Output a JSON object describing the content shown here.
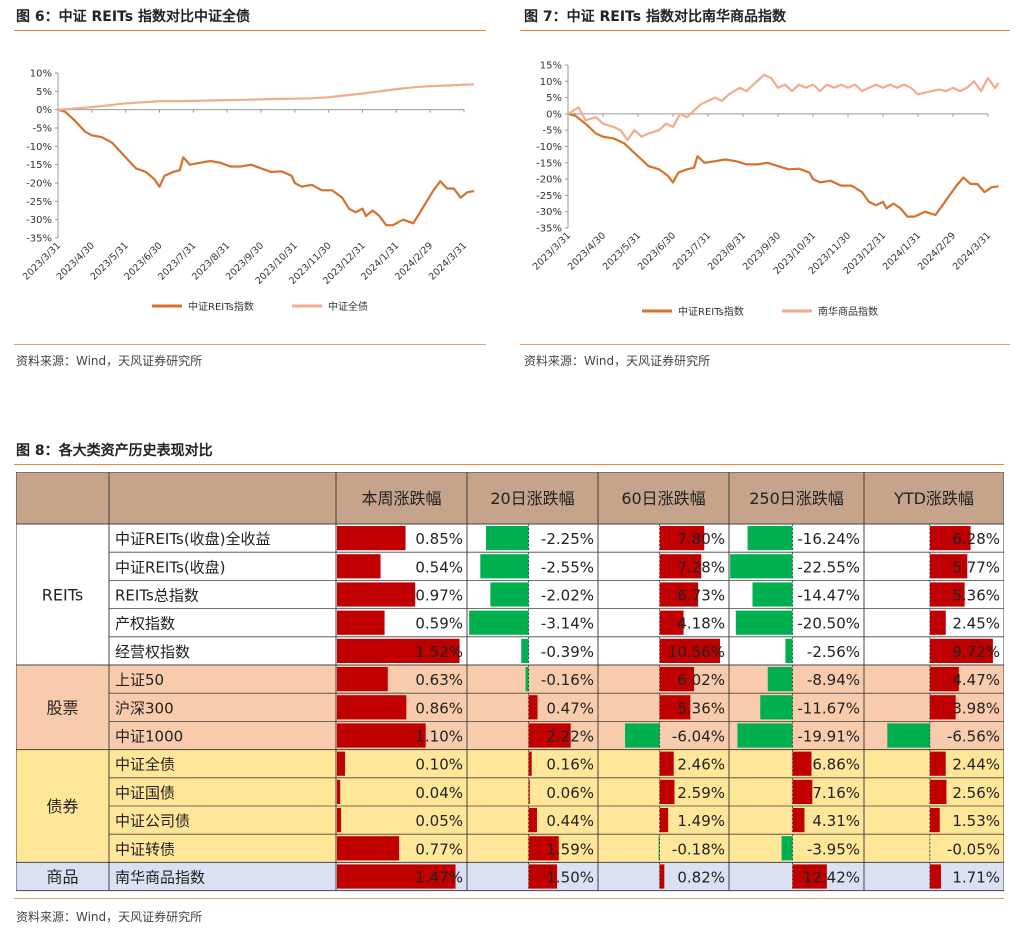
{
  "fig6": {
    "title": "图 6：中证 REITs 指数对比中证全债",
    "source": "资料来源：Wind，天风证券研究所",
    "chart_data": {
      "type": "line",
      "yticks": [
        "10%",
        "5%",
        "0%",
        "-5%",
        "-10%",
        "-15%",
        "-20%",
        "-25%",
        "-30%",
        "-35%"
      ],
      "ylim": [
        -35,
        10
      ],
      "xticks": [
        "2023/3/31",
        "2023/4/30",
        "2023/5/31",
        "2023/6/30",
        "2023/7/31",
        "2023/8/31",
        "2023/9/30",
        "2023/10/31",
        "2023/11/30",
        "2023/12/31",
        "2024/1/31",
        "2024/2/29",
        "2024/3/31"
      ],
      "series": [
        {
          "name": "中证REITs指数",
          "color": "#d4712a",
          "width": 2.2,
          "points": [
            [
              0,
              0
            ],
            [
              0.2,
              -0.5
            ],
            [
              0.5,
              -3
            ],
            [
              0.8,
              -6
            ],
            [
              1,
              -7
            ],
            [
              1.3,
              -7.5
            ],
            [
              1.6,
              -9
            ],
            [
              1.9,
              -12
            ],
            [
              2.1,
              -14
            ],
            [
              2.3,
              -16
            ],
            [
              2.6,
              -17
            ],
            [
              2.85,
              -19
            ],
            [
              3,
              -21
            ],
            [
              3.15,
              -18
            ],
            [
              3.4,
              -17
            ],
            [
              3.6,
              -16.5
            ],
            [
              3.7,
              -13
            ],
            [
              3.9,
              -15
            ],
            [
              4.2,
              -14.5
            ],
            [
              4.5,
              -14
            ],
            [
              4.8,
              -14.5
            ],
            [
              5.1,
              -15.5
            ],
            [
              5.4,
              -15.5
            ],
            [
              5.7,
              -15
            ],
            [
              6,
              -16
            ],
            [
              6.3,
              -17
            ],
            [
              6.6,
              -16.8
            ],
            [
              6.9,
              -18
            ],
            [
              7,
              -20
            ],
            [
              7.2,
              -21
            ],
            [
              7.5,
              -20.5
            ],
            [
              7.8,
              -22
            ],
            [
              8.1,
              -22
            ],
            [
              8.4,
              -24
            ],
            [
              8.6,
              -27
            ],
            [
              8.8,
              -28
            ],
            [
              9,
              -27
            ],
            [
              9.1,
              -29
            ],
            [
              9.3,
              -27.5
            ],
            [
              9.5,
              -29
            ],
            [
              9.7,
              -31.5
            ],
            [
              9.9,
              -31.5
            ],
            [
              10.2,
              -30
            ],
            [
              10.5,
              -31
            ],
            [
              10.7,
              -28
            ],
            [
              10.9,
              -25
            ],
            [
              11.1,
              -22
            ],
            [
              11.3,
              -19.5
            ],
            [
              11.5,
              -21.5
            ],
            [
              11.7,
              -21.5
            ],
            [
              11.9,
              -24
            ],
            [
              12.1,
              -22.5
            ],
            [
              12.3,
              -22.2
            ]
          ]
        },
        {
          "name": "中证全债",
          "color": "#f2ab8d",
          "width": 2.2,
          "points": [
            [
              0,
              0
            ],
            [
              0.5,
              0.3
            ],
            [
              1,
              0.7
            ],
            [
              1.5,
              1.2
            ],
            [
              2,
              1.7
            ],
            [
              2.5,
              2.0
            ],
            [
              3,
              2.3
            ],
            [
              3.5,
              2.3
            ],
            [
              4,
              2.4
            ],
            [
              4.5,
              2.5
            ],
            [
              5,
              2.6
            ],
            [
              5.5,
              2.7
            ],
            [
              6,
              2.8
            ],
            [
              6.5,
              2.9
            ],
            [
              7,
              3.0
            ],
            [
              7.5,
              3.1
            ],
            [
              8,
              3.4
            ],
            [
              8.5,
              3.9
            ],
            [
              9,
              4.4
            ],
            [
              9.5,
              5.0
            ],
            [
              10,
              5.6
            ],
            [
              10.5,
              6.1
            ],
            [
              11,
              6.4
            ],
            [
              11.5,
              6.6
            ],
            [
              12,
              6.8
            ],
            [
              12.3,
              6.9
            ]
          ]
        }
      ]
    }
  },
  "fig7": {
    "title": "图 7：中证 REITs 指数对比南华商品指数",
    "source": "资料来源：Wind，天风证券研究所",
    "chart_data": {
      "type": "line",
      "yticks": [
        "15%",
        "10%",
        "5%",
        "0%",
        "-5%",
        "-10%",
        "-15%",
        "-20%",
        "-25%",
        "-30%",
        "-35%"
      ],
      "ylim": [
        -35,
        15
      ],
      "xticks": [
        "2023/3/31",
        "2023/4/30",
        "2023/5/31",
        "2023/6/30",
        "2023/7/31",
        "2023/8/31",
        "2023/9/30",
        "2023/10/31",
        "2023/11/30",
        "2023/12/31",
        "2024/1/31",
        "2024/2/29",
        "2024/3/31"
      ],
      "series": [
        {
          "name": "中证REITs指数",
          "color": "#d4712a",
          "width": 2.2,
          "points": [
            [
              0,
              0
            ],
            [
              0.2,
              -0.5
            ],
            [
              0.5,
              -3
            ],
            [
              0.8,
              -6
            ],
            [
              1,
              -7
            ],
            [
              1.3,
              -7.5
            ],
            [
              1.6,
              -9
            ],
            [
              1.9,
              -12
            ],
            [
              2.1,
              -14
            ],
            [
              2.3,
              -16
            ],
            [
              2.6,
              -17
            ],
            [
              2.85,
              -19
            ],
            [
              3,
              -21
            ],
            [
              3.15,
              -18
            ],
            [
              3.4,
              -17
            ],
            [
              3.6,
              -16.5
            ],
            [
              3.7,
              -13
            ],
            [
              3.9,
              -15
            ],
            [
              4.2,
              -14.5
            ],
            [
              4.5,
              -14
            ],
            [
              4.8,
              -14.5
            ],
            [
              5.1,
              -15.5
            ],
            [
              5.4,
              -15.5
            ],
            [
              5.7,
              -15
            ],
            [
              6,
              -16
            ],
            [
              6.3,
              -17
            ],
            [
              6.6,
              -16.8
            ],
            [
              6.9,
              -18
            ],
            [
              7,
              -20
            ],
            [
              7.2,
              -21
            ],
            [
              7.5,
              -20.5
            ],
            [
              7.8,
              -22
            ],
            [
              8.1,
              -22
            ],
            [
              8.4,
              -24
            ],
            [
              8.6,
              -27
            ],
            [
              8.8,
              -28
            ],
            [
              9,
              -27
            ],
            [
              9.1,
              -29
            ],
            [
              9.3,
              -27.5
            ],
            [
              9.5,
              -29
            ],
            [
              9.7,
              -31.5
            ],
            [
              9.9,
              -31.5
            ],
            [
              10.2,
              -30
            ],
            [
              10.5,
              -31
            ],
            [
              10.7,
              -28
            ],
            [
              10.9,
              -25
            ],
            [
              11.1,
              -22
            ],
            [
              11.3,
              -19.5
            ],
            [
              11.5,
              -21.5
            ],
            [
              11.7,
              -21.5
            ],
            [
              11.9,
              -24
            ],
            [
              12.1,
              -22.5
            ],
            [
              12.3,
              -22.2
            ]
          ]
        },
        {
          "name": "南华商品指数",
          "color": "#f2ab8d",
          "width": 2.2,
          "points": [
            [
              0,
              0
            ],
            [
              0.3,
              2
            ],
            [
              0.5,
              -2
            ],
            [
              0.8,
              -1
            ],
            [
              1,
              -3
            ],
            [
              1.3,
              -4
            ],
            [
              1.5,
              -5
            ],
            [
              1.7,
              -8
            ],
            [
              1.9,
              -5
            ],
            [
              2.1,
              -7
            ],
            [
              2.3,
              -6
            ],
            [
              2.6,
              -5
            ],
            [
              2.8,
              -3
            ],
            [
              3,
              -4
            ],
            [
              3.2,
              0
            ],
            [
              3.4,
              -1
            ],
            [
              3.6,
              1
            ],
            [
              3.8,
              3
            ],
            [
              4,
              4
            ],
            [
              4.2,
              5
            ],
            [
              4.4,
              4
            ],
            [
              4.6,
              6
            ],
            [
              4.9,
              8
            ],
            [
              5.1,
              7
            ],
            [
              5.4,
              10
            ],
            [
              5.6,
              12
            ],
            [
              5.8,
              11
            ],
            [
              6,
              8
            ],
            [
              6.2,
              9
            ],
            [
              6.4,
              7
            ],
            [
              6.6,
              9
            ],
            [
              6.8,
              8
            ],
            [
              7,
              9
            ],
            [
              7.2,
              7
            ],
            [
              7.4,
              9
            ],
            [
              7.6,
              8
            ],
            [
              7.8,
              9
            ],
            [
              8,
              8
            ],
            [
              8.2,
              9
            ],
            [
              8.4,
              7
            ],
            [
              8.6,
              8
            ],
            [
              8.8,
              9
            ],
            [
              9,
              8
            ],
            [
              9.2,
              9
            ],
            [
              9.4,
              8
            ],
            [
              9.6,
              9
            ],
            [
              9.8,
              8
            ],
            [
              10,
              6
            ],
            [
              10.2,
              6.5
            ],
            [
              10.4,
              7
            ],
            [
              10.6,
              7.5
            ],
            [
              10.8,
              7
            ],
            [
              11,
              8
            ],
            [
              11.2,
              7
            ],
            [
              11.4,
              8
            ],
            [
              11.6,
              10
            ],
            [
              11.8,
              7
            ],
            [
              12,
              11
            ],
            [
              12.2,
              8
            ],
            [
              12.3,
              9.5
            ]
          ]
        }
      ]
    }
  },
  "fig8": {
    "title": "图 8：各大类资产历史表现对比",
    "source": "资料来源：Wind，天风证券研究所",
    "columns": [
      "本周涨跌幅",
      "20日涨跌幅",
      "60日涨跌幅",
      "250日涨跌幅",
      "YTD涨跌幅"
    ],
    "col_max": [
      1.6,
      3.2,
      10.6,
      22.6,
      10.0
    ],
    "colors": {
      "pos": "#c00000",
      "neg": "#00b050",
      "header": "#c5a48b",
      "reits": "#ffffff",
      "equity": "#f8cbad",
      "bond": "#ffe699",
      "commodity": "#d9e1f2",
      "text": "#222222"
    },
    "groups": [
      {
        "name": "REITs",
        "bg": "reits",
        "rows": [
          {
            "label": "中证REITs(收盘)全收益",
            "values": [
              0.85,
              -2.25,
              7.8,
              -16.24,
              6.28
            ],
            "text": [
              "0.85%",
              "-2.25%",
              "7.80%",
              "-16.24%",
              "6.28%"
            ]
          },
          {
            "label": "中证REITs(收盘)",
            "values": [
              0.54,
              -2.55,
              7.28,
              -22.55,
              5.77
            ],
            "text": [
              "0.54%",
              "-2.55%",
              "7.28%",
              "-22.55%",
              "5.77%"
            ]
          },
          {
            "label": "REITs总指数",
            "values": [
              0.97,
              -2.02,
              6.73,
              -14.47,
              5.36
            ],
            "text": [
              "0.97%",
              "-2.02%",
              "6.73%",
              "-14.47%",
              "5.36%"
            ]
          },
          {
            "label": "产权指数",
            "values": [
              0.59,
              -3.14,
              4.18,
              -20.5,
              2.45
            ],
            "text": [
              "0.59%",
              "-3.14%",
              "4.18%",
              "-20.50%",
              "2.45%"
            ]
          },
          {
            "label": "经营权指数",
            "values": [
              1.52,
              -0.39,
              10.56,
              -2.56,
              9.72
            ],
            "text": [
              "1.52%",
              "-0.39%",
              "10.56%",
              "-2.56%",
              "9.72%"
            ]
          }
        ]
      },
      {
        "name": "股票",
        "bg": "equity",
        "rows": [
          {
            "label": "上证50",
            "values": [
              0.63,
              -0.16,
              6.02,
              -8.94,
              4.47
            ],
            "text": [
              "0.63%",
              "-0.16%",
              "6.02%",
              "-8.94%",
              "4.47%"
            ]
          },
          {
            "label": "沪深300",
            "values": [
              0.86,
              0.47,
              5.36,
              -11.67,
              3.98
            ],
            "text": [
              "0.86%",
              "0.47%",
              "5.36%",
              "-11.67%",
              "3.98%"
            ]
          },
          {
            "label": "中证1000",
            "values": [
              1.1,
              2.22,
              -6.04,
              -19.91,
              -6.56
            ],
            "text": [
              "1.10%",
              "2.22%",
              "-6.04%",
              "-19.91%",
              "-6.56%"
            ]
          }
        ]
      },
      {
        "name": "债券",
        "bg": "bond",
        "rows": [
          {
            "label": "中证全债",
            "values": [
              0.1,
              0.16,
              2.46,
              6.86,
              2.44
            ],
            "text": [
              "0.10%",
              "0.16%",
              "2.46%",
              "6.86%",
              "2.44%"
            ]
          },
          {
            "label": "中证国债",
            "values": [
              0.04,
              0.06,
              2.59,
              7.16,
              2.56
            ],
            "text": [
              "0.04%",
              "0.06%",
              "2.59%",
              "7.16%",
              "2.56%"
            ]
          },
          {
            "label": "中证公司债",
            "values": [
              0.05,
              0.44,
              1.49,
              4.31,
              1.53
            ],
            "text": [
              "0.05%",
              "0.44%",
              "1.49%",
              "4.31%",
              "1.53%"
            ]
          },
          {
            "label": "中证转债",
            "values": [
              0.77,
              1.59,
              -0.18,
              -3.95,
              -0.05
            ],
            "text": [
              "0.77%",
              "1.59%",
              "-0.18%",
              "-3.95%",
              "-0.05%"
            ]
          }
        ]
      },
      {
        "name": "商品",
        "bg": "commodity",
        "rows": [
          {
            "label": "南华商品指数",
            "values": [
              1.47,
              1.5,
              0.82,
              12.42,
              1.71
            ],
            "text": [
              "1.47%",
              "1.50%",
              "0.82%",
              "12.42%",
              "1.71%"
            ]
          }
        ]
      }
    ]
  }
}
